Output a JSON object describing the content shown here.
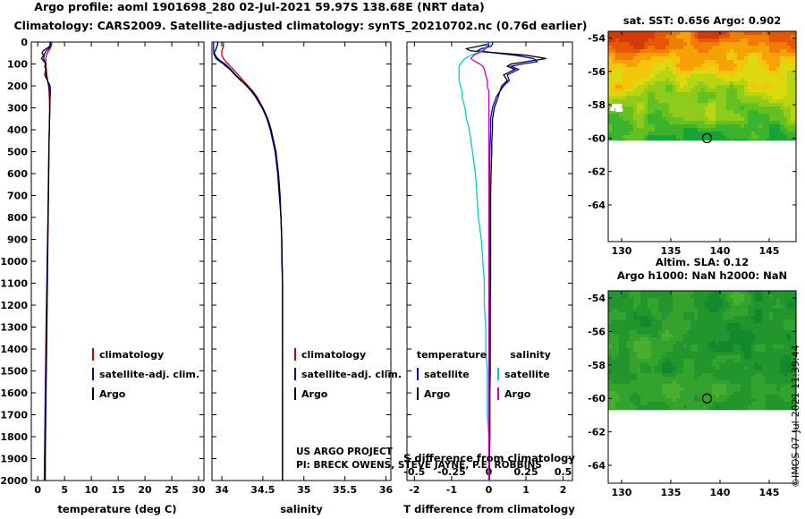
{
  "header": {
    "line1": "Argo profile: aoml 1901698_280 02-Jul-2021 59.97S 138.68E (NRT data)",
    "line2": "Climatology: CARS2009. Satellite-adjusted climatology: synTS_20210702.nc (0.76d earlier)"
  },
  "footer": {
    "line1": "US ARGO PROJECT",
    "line2": "PI: BRECK OWENS, STEVE JAYNE, P.E. ROBBINS"
  },
  "watermark": "©IMOS 07-Jul-2021 11:39:44",
  "chart_data": [
    {
      "type": "line",
      "name": "temperature-profile",
      "title": "",
      "xlabel": "temperature (deg C)",
      "ylabel": "",
      "xlim": [
        -1.2,
        31
      ],
      "ylim": [
        0,
        2000
      ],
      "xticks": [
        0,
        5,
        10,
        15,
        20,
        25,
        30
      ],
      "yticks": [
        0,
        100,
        200,
        300,
        400,
        500,
        600,
        700,
        800,
        900,
        1000,
        1100,
        1200,
        1300,
        1400,
        1500,
        1600,
        1700,
        1800,
        1900,
        2000
      ],
      "depths": [
        0,
        10,
        20,
        30,
        40,
        50,
        60,
        75,
        90,
        100,
        110,
        125,
        150,
        175,
        200,
        225,
        250,
        300,
        350,
        400,
        450,
        500,
        600,
        700,
        800,
        900,
        1000,
        1100,
        1200,
        1300,
        1400,
        1500,
        1600,
        1700,
        1800,
        1900,
        2000
      ],
      "legend": [
        {
          "label": "climatology",
          "color": "#cc0000"
        },
        {
          "label": "satellite-adj. clim.",
          "color": "#0000cc"
        },
        {
          "label": "Argo",
          "color": "#000000"
        }
      ],
      "series": [
        {
          "name": "climatology",
          "color": "#cc0000",
          "values": [
            2.6,
            2.6,
            2.5,
            2.3,
            2.0,
            1.8,
            1.6,
            1.5,
            1.5,
            1.5,
            1.55,
            1.6,
            1.7,
            1.85,
            2.0,
            2.1,
            2.15,
            2.2,
            2.2,
            2.15,
            2.1,
            2.05,
            2.0,
            1.95,
            1.9,
            1.82,
            1.75,
            1.68,
            1.62,
            1.56,
            1.5,
            1.45,
            1.4,
            1.35,
            1.3,
            1.26,
            1.22
          ]
        },
        {
          "name": "satellite-adj. clim.",
          "color": "#0000cc",
          "values": [
            2.4,
            2.4,
            2.3,
            2.0,
            1.6,
            1.3,
            1.2,
            1.1,
            1.3,
            1.4,
            1.45,
            1.5,
            1.6,
            1.8,
            2.1,
            2.2,
            2.25,
            2.25,
            2.2,
            2.18,
            2.12,
            2.08,
            2.02,
            1.97,
            1.92,
            1.85,
            1.78,
            1.72,
            1.66,
            1.6,
            1.55,
            1.5,
            1.45,
            1.4,
            1.36,
            1.32,
            1.28
          ]
        },
        {
          "name": "Argo",
          "color": "#000000",
          "values": [
            2.3,
            2.3,
            2.2,
            1.6,
            1.0,
            0.8,
            1.1,
            0.7,
            1.2,
            1.6,
            1.3,
            1.5,
            1.3,
            1.8,
            2.3,
            2.35,
            2.3,
            2.25,
            2.2,
            2.15,
            2.1,
            2.1,
            2.05,
            2.0,
            1.95,
            1.9,
            1.85,
            1.8,
            1.75,
            1.7,
            1.65,
            1.6,
            1.55,
            1.5,
            1.45,
            1.42,
            1.4
          ]
        }
      ]
    },
    {
      "type": "line",
      "name": "salinity-profile",
      "title": "",
      "xlabel": "salinity",
      "ylabel": "",
      "xlim": [
        33.88,
        36.06
      ],
      "ylim": [
        0,
        2000
      ],
      "xticks": [
        34,
        34.5,
        35,
        35.5,
        36
      ],
      "yticks": [
        0,
        100,
        200,
        300,
        400,
        500,
        600,
        700,
        800,
        900,
        1000,
        1100,
        1200,
        1300,
        1400,
        1500,
        1600,
        1700,
        1800,
        1900,
        2000
      ],
      "depths": [
        0,
        10,
        20,
        30,
        40,
        50,
        60,
        75,
        90,
        100,
        110,
        125,
        150,
        175,
        200,
        225,
        250,
        300,
        350,
        400,
        450,
        500,
        600,
        700,
        800,
        900,
        1000,
        1100,
        1200,
        1300,
        1400,
        1500,
        1600,
        1700,
        1800,
        1900,
        2000
      ],
      "legend": [
        {
          "label": "climatology",
          "color": "#cc0000"
        },
        {
          "label": "satellite-adj. clim.",
          "color": "#0000cc"
        },
        {
          "label": "Argo",
          "color": "#000000"
        }
      ],
      "series": [
        {
          "name": "climatology",
          "color": "#cc0000",
          "values": [
            34.02,
            34.02,
            34.02,
            34.01,
            34.0,
            34.0,
            34.0,
            34.02,
            34.05,
            34.08,
            34.1,
            34.14,
            34.2,
            34.26,
            34.32,
            34.38,
            34.43,
            34.5,
            34.56,
            34.6,
            34.63,
            34.65,
            34.69,
            34.71,
            34.72,
            34.73,
            34.735,
            34.74,
            34.74,
            34.74,
            34.74,
            34.74,
            34.74,
            34.74,
            34.74,
            34.74,
            34.74
          ]
        },
        {
          "name": "satellite-adj. clim.",
          "color": "#0000cc",
          "values": [
            33.9,
            33.9,
            33.9,
            33.9,
            33.9,
            33.91,
            33.92,
            33.95,
            34.0,
            34.04,
            34.07,
            34.11,
            34.17,
            34.24,
            34.3,
            34.36,
            34.41,
            34.49,
            34.55,
            34.59,
            34.62,
            34.65,
            34.68,
            34.7,
            34.72,
            34.73,
            34.73,
            34.74,
            34.74,
            34.74,
            34.74,
            34.74,
            34.74,
            34.74,
            34.74,
            34.74,
            34.74
          ]
        },
        {
          "name": "Argo",
          "color": "#000000",
          "values": [
            33.95,
            33.95,
            33.94,
            33.93,
            33.92,
            33.9,
            33.91,
            33.93,
            33.98,
            34.02,
            34.05,
            34.1,
            34.16,
            34.23,
            34.31,
            34.37,
            34.42,
            34.5,
            34.56,
            34.6,
            34.63,
            34.66,
            34.69,
            34.71,
            34.72,
            34.73,
            34.735,
            34.74,
            34.74,
            34.74,
            34.74,
            34.74,
            34.74,
            34.74,
            34.74,
            34.74,
            34.74
          ]
        }
      ]
    },
    {
      "type": "line",
      "name": "difference-profile",
      "title": "",
      "xlabel": "T difference from climatology",
      "ylabel": "",
      "xlim": [
        -2.2,
        2.25
      ],
      "ylim": [
        0,
        2000
      ],
      "xticks": [
        -2,
        -1,
        0,
        1,
        2
      ],
      "yticks": [
        0,
        100,
        200,
        300,
        400,
        500,
        600,
        700,
        800,
        900,
        1000,
        1100,
        1200,
        1300,
        1400,
        1500,
        1600,
        1700,
        1800,
        1900,
        2000
      ],
      "depths": [
        0,
        10,
        20,
        30,
        40,
        50,
        60,
        75,
        90,
        100,
        110,
        125,
        150,
        175,
        200,
        225,
        250,
        300,
        350,
        400,
        450,
        500,
        600,
        700,
        800,
        900,
        1000,
        1100,
        1200,
        1300,
        1400,
        1500,
        1600,
        1700,
        1800,
        1900,
        2000
      ],
      "inner_axis": {
        "label": "S difference from climatology",
        "ticks": [
          -0.5,
          -0.25,
          0,
          0.25,
          0.5
        ],
        "scale": 4
      },
      "legend_columns": [
        {
          "header": "temperature",
          "entries": [
            {
              "label": "satellite",
              "color": "#0000cc"
            },
            {
              "label": "Argo",
              "color": "#000000"
            }
          ]
        },
        {
          "header": "salinity",
          "entries": [
            {
              "label": "satellite",
              "color": "#00cccc"
            },
            {
              "label": "Argo",
              "color": "#cc00cc"
            }
          ]
        }
      ],
      "series": [
        {
          "name": "T satellite",
          "color": "#0000cc",
          "x_scale": 1,
          "values": [
            0.1,
            0.1,
            0.05,
            -0.2,
            -0.3,
            0.2,
            0.7,
            1.2,
            1.3,
            0.9,
            0.6,
            0.8,
            0.5,
            0.55,
            0.4,
            0.3,
            0.2,
            0.1,
            0.05,
            0.05,
            0.04,
            0.03,
            0.02,
            0.02,
            0.02,
            0.02,
            0.02,
            0.02,
            0.01,
            0.01,
            0.01,
            0.01,
            0.01,
            0.01,
            0.01,
            0.01,
            0.01
          ]
        },
        {
          "name": "T Argo",
          "color": "#000000",
          "x_scale": 1,
          "values": [
            0.0,
            -0.05,
            -0.3,
            -0.6,
            -0.5,
            0.3,
            1.0,
            1.55,
            1.0,
            0.6,
            0.5,
            0.7,
            0.4,
            0.5,
            0.35,
            0.3,
            0.25,
            0.15,
            0.1,
            0.1,
            0.08,
            0.08,
            0.06,
            0.05,
            0.05,
            0.05,
            0.05,
            0.05,
            0.04,
            0.04,
            0.04,
            0.04,
            0.03,
            0.03,
            0.03,
            0.02,
            0.02
          ]
        },
        {
          "name": "S satellite",
          "color": "#00cccc",
          "x_scale": 4,
          "values": [
            -0.01,
            -0.01,
            -0.02,
            -0.03,
            -0.05,
            -0.08,
            -0.12,
            -0.16,
            -0.18,
            -0.19,
            -0.2,
            -0.2,
            -0.2,
            -0.2,
            -0.19,
            -0.18,
            -0.18,
            -0.16,
            -0.15,
            -0.13,
            -0.12,
            -0.11,
            -0.09,
            -0.08,
            -0.07,
            -0.05,
            -0.04,
            -0.03,
            -0.03,
            -0.02,
            -0.02,
            -0.01,
            -0.01,
            -0.01,
            0.0,
            0.0,
            0.0
          ]
        },
        {
          "name": "S Argo",
          "color": "#cc00cc",
          "x_scale": 4,
          "values": [
            0.0,
            0.0,
            -0.01,
            -0.02,
            -0.04,
            -0.07,
            -0.1,
            -0.12,
            -0.09,
            -0.06,
            -0.04,
            -0.03,
            -0.02,
            -0.01,
            -0.01,
            0.0,
            0.0,
            0.0,
            0.0,
            0.0,
            0.0,
            0.0,
            0.0,
            0.0,
            0.0,
            0.0,
            0.0,
            0.0,
            0.0,
            0.0,
            0.0,
            0.0,
            0.0,
            0.0,
            0.0,
            0.0,
            0.0
          ]
        }
      ]
    },
    {
      "type": "heatmap",
      "name": "sst-map",
      "title": "sat. SST: 0.656 Argo: 0.902",
      "xlim": [
        128.64,
        147.73
      ],
      "ylim": [
        -53.6,
        -66.2
      ],
      "xticks": [
        130,
        135,
        140,
        145
      ],
      "yticks": [
        -54,
        -56,
        -58,
        -60,
        -62,
        -64
      ],
      "data_bottom_lat": -60.15,
      "gradient": "warm_top",
      "palette": [
        "#18a238",
        "#3bb32c",
        "#63c122",
        "#8ecb1a",
        "#b7d513",
        "#dcd90e",
        "#f2c60a",
        "#f6a106",
        "#f17c04",
        "#e65703",
        "#d43a03"
      ],
      "marker": {
        "lon": 138.68,
        "lat": -60.0
      },
      "ice_patch": {
        "lon": 129.3,
        "lat": -58.1
      },
      "seed": 3.7
    },
    {
      "type": "heatmap",
      "name": "sla-map",
      "title_lines": [
        "Altim. SLA: 0.12",
        "Argo h1000: NaN h2000: NaN"
      ],
      "xlim": [
        128.64,
        147.73
      ],
      "ylim": [
        -53.57,
        -65.07
      ],
      "xticks": [
        130,
        135,
        140,
        145
      ],
      "yticks": [
        -54,
        -56,
        -58,
        -60,
        -62,
        -64
      ],
      "data_bottom_lat": -60.7,
      "gradient": "uniform",
      "palette": [
        "#067d29",
        "#12892b",
        "#21962c",
        "#33a32e",
        "#49af31",
        "#62bb35",
        "#7ec63a",
        "#9cd041"
      ],
      "marker": {
        "lon": 138.68,
        "lat": -60.0
      },
      "seed": 11.3
    }
  ]
}
